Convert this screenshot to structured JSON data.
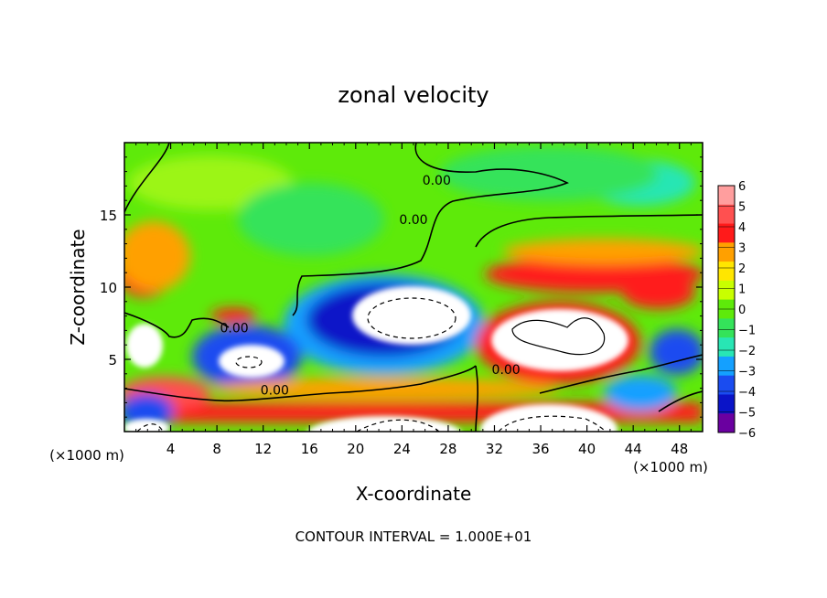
{
  "chart_data": {
    "type": "heatmap",
    "title": "zonal velocity",
    "xlabel": "X-coordinate",
    "ylabel": "Z-coordinate",
    "x_unit_left": "(×1000 m)",
    "x_unit_right": "(×1000 m)",
    "xlim": [
      0,
      50
    ],
    "ylim": [
      0,
      20
    ],
    "x_ticks": [
      {
        "value": 4,
        "label": "4"
      },
      {
        "value": 8,
        "label": "8"
      },
      {
        "value": 12,
        "label": "12"
      },
      {
        "value": 16,
        "label": "16"
      },
      {
        "value": 20,
        "label": "20"
      },
      {
        "value": 24,
        "label": "24"
      },
      {
        "value": 28,
        "label": "28"
      },
      {
        "value": 32,
        "label": "32"
      },
      {
        "value": 36,
        "label": "36"
      },
      {
        "value": 40,
        "label": "40"
      },
      {
        "value": 44,
        "label": "44"
      },
      {
        "value": 48,
        "label": "48"
      }
    ],
    "y_ticks": [
      {
        "value": 5,
        "label": "5"
      },
      {
        "value": 10,
        "label": "10"
      },
      {
        "value": 15,
        "label": "15"
      }
    ],
    "colorbar": {
      "levels": [
        6,
        5,
        4,
        3,
        2,
        1,
        0,
        -1,
        -2,
        -3,
        -4,
        -5,
        -6
      ],
      "labels": [
        "6",
        "5",
        "4",
        "3",
        "2",
        "1",
        "0",
        "−1",
        "−2",
        "−3",
        "−4",
        "−5",
        "−6"
      ],
      "colors": [
        "#ff9e9e",
        "#ff5050",
        "#ff1a1a",
        "#ffa000",
        "#ffe600",
        "#c8ff00",
        "#5eea0a",
        "#34e35a",
        "#28e6b4",
        "#14a0ff",
        "#1a4cf0",
        "#0a14c8",
        "#6a00a0"
      ]
    },
    "contour_labels": [
      {
        "x": 27.0,
        "y": 17.2,
        "text": "0.00"
      },
      {
        "x": 25.0,
        "y": 14.5,
        "text": "0.00"
      },
      {
        "x": 9.5,
        "y": 7.0,
        "text": "0.00"
      },
      {
        "x": 13.0,
        "y": 2.7,
        "text": "0.00"
      },
      {
        "x": 33.0,
        "y": 4.1,
        "text": "0.00"
      }
    ],
    "footer": "CONTOUR INTERVAL = 1.000E+01"
  }
}
